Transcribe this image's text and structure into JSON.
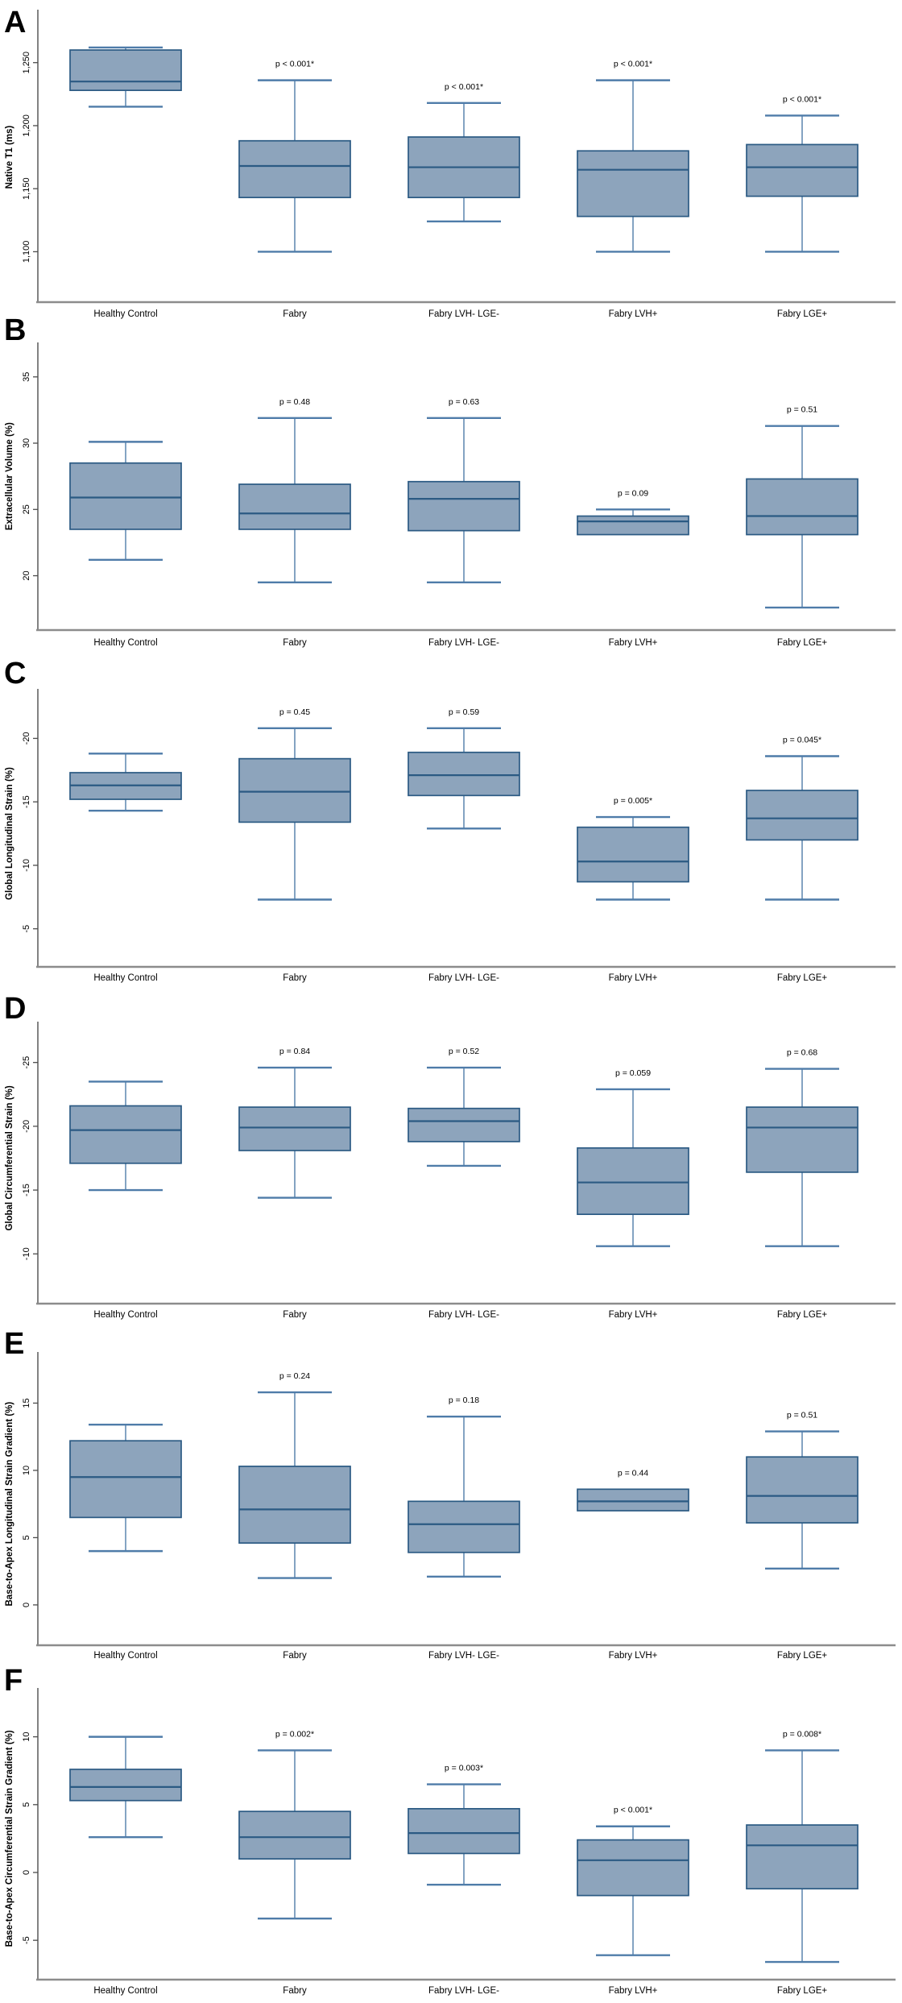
{
  "figure": {
    "description": "Six-panel box plot figure comparing CMR parameters across Fabry disease subgroups",
    "panel_letters": [
      "A",
      "B",
      "C",
      "D",
      "E",
      "F"
    ]
  },
  "chart_data": {
    "type": "box",
    "legend_position": "none",
    "grid": false,
    "categories": [
      "Healthy Control",
      "Fabry",
      "Fabry LVH- LGE-",
      "Fabry LVH+",
      "Fabry LGE+"
    ],
    "style": {
      "box_fill": "#8DA4BC",
      "box_stroke": "#2B5A83",
      "median_stroke": "#2B5A83",
      "whisker_stroke": "#4F7CA9",
      "axis_line": "#8C8C8C",
      "spine_line": "#4D4D4D",
      "text_color": "#000000",
      "background": "#FFFFFF"
    },
    "panels": [
      {
        "letter": "A",
        "ylabel": "Native T1 (ms)",
        "ylim_top": 1292,
        "ylim_bottom": 1060,
        "yticks": [
          {
            "label": "1,250",
            "value": 1250
          },
          {
            "label": "1,200",
            "value": 1200
          },
          {
            "label": "1,150",
            "value": 1150
          },
          {
            "label": "1,100",
            "value": 1100
          }
        ],
        "boxes": [
          {
            "category": "Healthy Control",
            "low": 1215,
            "q1": 1228,
            "median": 1235,
            "q3": 1260,
            "high": 1262,
            "p": null
          },
          {
            "category": "Fabry",
            "low": 1100,
            "q1": 1143,
            "median": 1168,
            "q3": 1188,
            "high": 1236,
            "p": "p < 0.001*"
          },
          {
            "category": "Fabry LVH- LGE-",
            "low": 1124,
            "q1": 1143,
            "median": 1167,
            "q3": 1191,
            "high": 1218,
            "p": "p < 0.001*"
          },
          {
            "category": "Fabry LVH+",
            "low": 1100,
            "q1": 1128,
            "median": 1165,
            "q3": 1180,
            "high": 1236,
            "p": "p < 0.001*"
          },
          {
            "category": "Fabry LGE+",
            "low": 1100,
            "q1": 1144,
            "median": 1167,
            "q3": 1185,
            "high": 1208,
            "p": "p < 0.001*"
          }
        ]
      },
      {
        "letter": "B",
        "ylabel": "Extracellular Volume (%)",
        "ylim_top": 37.6,
        "ylim_bottom": 15.9,
        "yticks": [
          {
            "label": "35",
            "value": 35
          },
          {
            "label": "30",
            "value": 30
          },
          {
            "label": "25",
            "value": 25
          },
          {
            "label": "20",
            "value": 20
          }
        ],
        "boxes": [
          {
            "category": "Healthy Control",
            "low": 21.2,
            "q1": 23.5,
            "median": 25.9,
            "q3": 28.5,
            "high": 30.1,
            "p": null
          },
          {
            "category": "Fabry",
            "low": 19.5,
            "q1": 23.5,
            "median": 24.7,
            "q3": 26.9,
            "high": 31.9,
            "p": "p = 0.48"
          },
          {
            "category": "Fabry LVH- LGE-",
            "low": 19.5,
            "q1": 23.4,
            "median": 25.8,
            "q3": 27.1,
            "high": 31.9,
            "p": "p = 0.63"
          },
          {
            "category": "Fabry LVH+",
            "low": 23.1,
            "q1": 23.1,
            "median": 24.1,
            "q3": 24.5,
            "high": 25.0,
            "p": "p = 0.09"
          },
          {
            "category": "Fabry LGE+",
            "low": 17.6,
            "q1": 23.1,
            "median": 24.5,
            "q3": 27.3,
            "high": 31.3,
            "p": "p = 0.51"
          }
        ]
      },
      {
        "letter": "C",
        "ylabel": "Global Longitudinal Strain (%)",
        "ylim_top": -23.9,
        "ylim_bottom": -2.0,
        "yticks": [
          {
            "label": "-20",
            "value": -20
          },
          {
            "label": "-15",
            "value": -15
          },
          {
            "label": "-10",
            "value": -10
          },
          {
            "label": "-5",
            "value": -5
          }
        ],
        "boxes": [
          {
            "category": "Healthy Control",
            "low": -14.3,
            "q1": -15.2,
            "median": -16.3,
            "q3": -17.3,
            "high": -18.8,
            "p": null
          },
          {
            "category": "Fabry",
            "low": -7.3,
            "q1": -13.4,
            "median": -15.8,
            "q3": -18.4,
            "high": -20.8,
            "p": "p = 0.45"
          },
          {
            "category": "Fabry LVH- LGE-",
            "low": -12.9,
            "q1": -15.5,
            "median": -17.1,
            "q3": -18.9,
            "high": -20.8,
            "p": "p = 0.59"
          },
          {
            "category": "Fabry LVH+",
            "low": -7.3,
            "q1": -8.7,
            "median": -10.3,
            "q3": -13.0,
            "high": -13.8,
            "p": "p = 0.005*"
          },
          {
            "category": "Fabry LGE+",
            "low": -7.3,
            "q1": -12.0,
            "median": -13.7,
            "q3": -15.9,
            "high": -18.6,
            "p": "p = 0.045*"
          }
        ]
      },
      {
        "letter": "D",
        "ylabel": "Global Circumferential Strain (%)",
        "ylim_top": -28.2,
        "ylim_bottom": -6.1,
        "yticks": [
          {
            "label": "-25",
            "value": -25
          },
          {
            "label": "-20",
            "value": -20
          },
          {
            "label": "-15",
            "value": -15
          },
          {
            "label": "-10",
            "value": -10
          }
        ],
        "boxes": [
          {
            "category": "Healthy Control",
            "low": -15.0,
            "q1": -17.1,
            "median": -19.7,
            "q3": -21.6,
            "high": -23.5,
            "p": null
          },
          {
            "category": "Fabry",
            "low": -14.4,
            "q1": -18.1,
            "median": -19.9,
            "q3": -21.5,
            "high": -24.6,
            "p": "p = 0.84"
          },
          {
            "category": "Fabry LVH- LGE-",
            "low": -16.9,
            "q1": -18.8,
            "median": -20.4,
            "q3": -21.4,
            "high": -24.6,
            "p": "p = 0.52"
          },
          {
            "category": "Fabry LVH+",
            "low": -10.6,
            "q1": -13.1,
            "median": -15.6,
            "q3": -18.3,
            "high": -22.9,
            "p": "p = 0.059"
          },
          {
            "category": "Fabry LGE+",
            "low": -10.6,
            "q1": -16.4,
            "median": -19.9,
            "q3": -21.5,
            "high": -24.5,
            "p": "p = 0.68"
          }
        ]
      },
      {
        "letter": "E",
        "ylabel": "Base-to-Apex Longitudinal Strain Gradient (%)",
        "ylim_top": 18.8,
        "ylim_bottom": -3.0,
        "yticks": [
          {
            "label": "15",
            "value": 15
          },
          {
            "label": "10",
            "value": 10
          },
          {
            "label": "5",
            "value": 5
          },
          {
            "label": "0",
            "value": 0
          }
        ],
        "boxes": [
          {
            "category": "Healthy Control",
            "low": 4.0,
            "q1": 6.5,
            "median": 9.5,
            "q3": 12.2,
            "high": 13.4,
            "p": null
          },
          {
            "category": "Fabry",
            "low": 2.0,
            "q1": 4.6,
            "median": 7.1,
            "q3": 10.3,
            "high": 15.8,
            "p": "p = 0.24"
          },
          {
            "category": "Fabry LVH- LGE-",
            "low": 2.1,
            "q1": 3.9,
            "median": 6.0,
            "q3": 7.7,
            "high": 14.0,
            "p": "p = 0.18"
          },
          {
            "category": "Fabry LVH+",
            "low": 7.0,
            "q1": 7.0,
            "median": 7.7,
            "q3": 8.6,
            "high": 8.6,
            "p": "p = 0.44"
          },
          {
            "category": "Fabry LGE+",
            "low": 2.7,
            "q1": 6.1,
            "median": 8.1,
            "q3": 11.0,
            "high": 12.9,
            "p": "p = 0.51"
          }
        ]
      },
      {
        "letter": "F",
        "ylabel": "Base-to-Apex Circumferential Strain Gradient (%)",
        "ylim_top": 13.6,
        "ylim_bottom": -7.9,
        "yticks": [
          {
            "label": "10",
            "value": 10
          },
          {
            "label": "5",
            "value": 5
          },
          {
            "label": "0",
            "value": 0
          },
          {
            "label": "-5",
            "value": -5
          }
        ],
        "boxes": [
          {
            "category": "Healthy Control",
            "low": 2.6,
            "q1": 5.3,
            "median": 6.3,
            "q3": 7.6,
            "high": 10.0,
            "p": null
          },
          {
            "category": "Fabry",
            "low": -3.4,
            "q1": 1.0,
            "median": 2.6,
            "q3": 4.5,
            "high": 9.0,
            "p": "p = 0.002*"
          },
          {
            "category": "Fabry LVH- LGE-",
            "low": -0.9,
            "q1": 1.4,
            "median": 2.9,
            "q3": 4.7,
            "high": 6.5,
            "p": "p = 0.003*"
          },
          {
            "category": "Fabry LVH+",
            "low": -6.1,
            "q1": -1.7,
            "median": 0.9,
            "q3": 2.4,
            "high": 3.4,
            "p": "p < 0.001*"
          },
          {
            "category": "Fabry LGE+",
            "low": -6.6,
            "q1": -1.2,
            "median": 2.0,
            "q3": 3.5,
            "high": 9.0,
            "p": "p = 0.008*"
          }
        ]
      }
    ]
  }
}
